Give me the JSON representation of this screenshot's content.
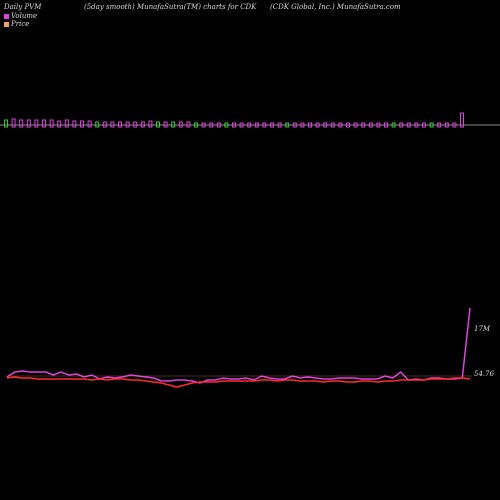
{
  "header": {
    "left": "Daily PVM",
    "center": "(5day smooth) MunafaSutra(TM) charts for CDK",
    "right": "(CDK Global, Inc.) MunafaSutra.com"
  },
  "legend": [
    {
      "label": "Volume",
      "color": "#e040e0"
    },
    {
      "label": "Price",
      "color": "#f4a060"
    }
  ],
  "chart_data": {
    "type": "bar",
    "volume_bars": [
      5,
      6,
      5,
      5,
      5,
      5,
      5,
      4,
      5,
      4,
      4,
      4,
      3,
      3,
      3,
      3,
      3,
      3,
      3,
      4,
      3,
      3,
      3,
      3,
      3,
      2,
      2,
      2,
      2,
      2,
      2,
      2,
      2,
      2,
      2,
      2,
      2,
      2,
      2,
      2,
      2,
      2,
      2,
      2,
      2,
      2,
      2,
      2,
      2,
      2,
      2,
      2,
      2,
      2,
      2,
      2,
      2,
      2,
      2,
      2,
      12
    ],
    "volume_colors": [
      "g",
      "r",
      "r",
      "r",
      "r",
      "r",
      "r",
      "r",
      "r",
      "r",
      "r",
      "r",
      "g",
      "r",
      "r",
      "r",
      "r",
      "r",
      "r",
      "r",
      "g",
      "r",
      "g",
      "r",
      "r",
      "g",
      "r",
      "r",
      "r",
      "g",
      "r",
      "r",
      "r",
      "r",
      "r",
      "r",
      "r",
      "g",
      "r",
      "r",
      "r",
      "r",
      "r",
      "r",
      "r",
      "r",
      "r",
      "r",
      "r",
      "r",
      "r",
      "g",
      "r",
      "r",
      "r",
      "r",
      "g",
      "r",
      "r",
      "r",
      "r"
    ],
    "volume_line": [
      71,
      76,
      77,
      76,
      76,
      76,
      73,
      76,
      73,
      74,
      71,
      73,
      69,
      71,
      70,
      71,
      73,
      72,
      71,
      70,
      67,
      67,
      68,
      68,
      67,
      65,
      68,
      68,
      70,
      69,
      69,
      70,
      68,
      72,
      70,
      69,
      69,
      72,
      70,
      71,
      70,
      69,
      69,
      70,
      70,
      70,
      69,
      69,
      69,
      72,
      70,
      76,
      68,
      69,
      68,
      70,
      70,
      69,
      69,
      70,
      140
    ],
    "price_line": [
      70,
      71,
      70,
      70,
      69,
      69,
      69,
      69,
      69,
      69,
      69,
      68,
      69,
      68,
      69,
      69,
      68,
      68,
      67,
      66,
      65,
      63,
      61,
      63,
      65,
      66,
      66,
      66,
      67,
      67,
      67,
      67,
      67,
      68,
      68,
      67,
      68,
      68,
      67,
      67,
      67,
      66,
      67,
      67,
      66,
      66,
      67,
      67,
      66,
      67,
      67,
      68,
      68,
      68,
      68,
      69,
      69,
      69,
      70,
      70,
      69
    ],
    "labels": {
      "volume_max": "17M",
      "price_last": "54.76"
    }
  }
}
